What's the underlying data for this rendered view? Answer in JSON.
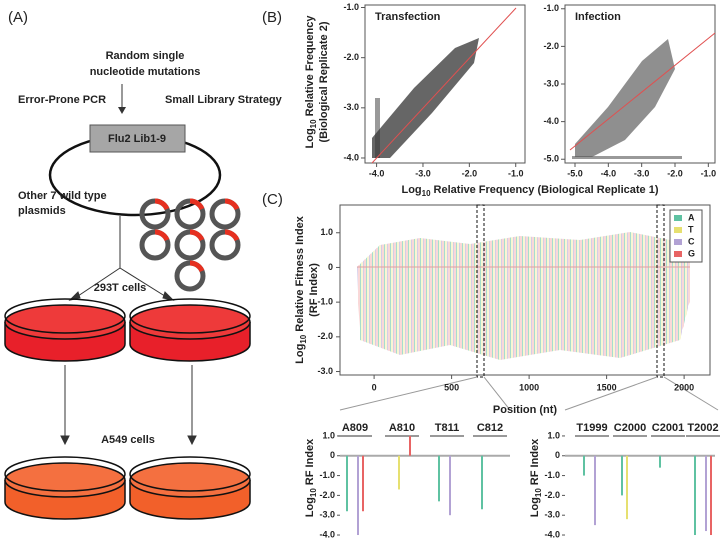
{
  "panel_labels": [
    "(A)",
    "(B)",
    "(C)"
  ],
  "panel_a": {
    "mutations_title": [
      "Random single",
      "nucleotide mutations"
    ],
    "method_left": "Error-Prone PCR",
    "method_right": "Small Library Strategy",
    "library": "Flu2 Lib1-9",
    "other_plasmids": [
      "Other 7 wild type",
      "plasmids"
    ],
    "cells_1": "293T cells",
    "cells_2": "A549 cells"
  },
  "panel_b": {
    "y_label": {
      "log": "Log",
      "base": "10",
      "text": "Relative  Frequency",
      "line2": "(Biological Replicate 2)"
    },
    "x_label": {
      "log": "Log",
      "base": "10",
      "text": "Relative Frequency  (Biological Replicate 1)"
    },
    "plots": [
      {
        "title": "Transfection",
        "xlim": [
          -4.25,
          -0.8
        ],
        "ylim": [
          -4.1,
          -0.95
        ],
        "xticks": [
          {
            "value": -4,
            "label": "-4.0"
          },
          {
            "value": -3,
            "label": "-3.0"
          },
          {
            "value": -2,
            "label": "-2.0"
          },
          {
            "value": -1,
            "label": "-1.0"
          }
        ],
        "yticks": [
          {
            "value": -1,
            "label": "-1.0"
          },
          {
            "value": -2,
            "label": "-2.0"
          },
          {
            "value": -3,
            "label": "-3.0"
          },
          {
            "value": -4,
            "label": "-4.0"
          }
        ]
      },
      {
        "title": "Infection",
        "xlim": [
          -5.3,
          -0.8
        ],
        "ylim": [
          -5.1,
          -0.9
        ],
        "xticks": [
          {
            "value": -5,
            "label": "-5.0"
          },
          {
            "value": -4,
            "label": "-4.0"
          },
          {
            "value": -3,
            "label": "-3.0"
          },
          {
            "value": -2,
            "label": "-2.0"
          },
          {
            "value": -1,
            "label": "-1.0"
          }
        ],
        "yticks": [
          {
            "value": -1,
            "label": "-1.0"
          },
          {
            "value": -2,
            "label": "-2.0"
          },
          {
            "value": -3,
            "label": "-3.0"
          },
          {
            "value": -4,
            "label": "-4.0"
          },
          {
            "value": -5,
            "label": "-5.0"
          }
        ]
      }
    ]
  },
  "panel_c": {
    "y_label": {
      "log": "Log",
      "base": "10",
      "text": "Relative Fitness Index",
      "line2": "(RF Index)"
    },
    "x_label": "Position (nt)",
    "xlim": [
      -110,
      2277
    ],
    "ylim": [
      -3.1,
      1.8
    ],
    "xticks": [
      0,
      500,
      1000,
      1500,
      2000
    ],
    "yticks": [
      {
        "value": 1,
        "label": "1.0"
      },
      0,
      {
        "value": -1,
        "label": "-1.0"
      },
      {
        "value": -2,
        "label": "-2.0"
      },
      {
        "value": -3,
        "label": "-3.0"
      }
    ],
    "legend": [
      {
        "name": "A",
        "color": "#5fc2a2"
      },
      {
        "name": "T",
        "color": "#e6e070"
      },
      {
        "name": "C",
        "color": "#b2a2d4"
      },
      {
        "name": "G",
        "color": "#e86464"
      }
    ],
    "zoom_y_label": {
      "log": "Log",
      "base": "10",
      "text": "RF Index"
    },
    "zoom_ylim": [
      -4.1,
      1.3
    ],
    "zoom_yticks": [
      {
        "value": 1,
        "label": "1.0"
      },
      0,
      {
        "value": -1,
        "label": "-1.0"
      },
      {
        "value": -2,
        "label": "-2.0"
      },
      {
        "value": -3,
        "label": "-3.0"
      },
      {
        "value": -4,
        "label": "-4.0"
      }
    ],
    "zooms": [
      {
        "categories": [
          "A809",
          "A810",
          "T811",
          "C812"
        ],
        "series": [
          {
            "name": "A",
            "values": [
              -2.8,
              null,
              -2.3,
              -2.7
            ]
          },
          {
            "name": "T",
            "values": [
              null,
              -1.7,
              null,
              null
            ]
          },
          {
            "name": "C",
            "values": [
              -4.0,
              null,
              -3.0,
              null
            ]
          },
          {
            "name": "G",
            "values": [
              -2.8,
              1.0,
              null,
              null
            ]
          }
        ]
      },
      {
        "categories": [
          "T1999",
          "C2000",
          "C2001",
          "T2002"
        ],
        "series": [
          {
            "name": "A",
            "values": [
              -1.0,
              -2.0,
              -0.6,
              -4.0
            ]
          },
          {
            "name": "T",
            "values": [
              null,
              -3.2,
              null,
              null
            ]
          },
          {
            "name": "C",
            "values": [
              -3.5,
              null,
              null,
              -3.8
            ]
          },
          {
            "name": "G",
            "values": [
              null,
              null,
              null,
              -4.0
            ]
          }
        ]
      }
    ]
  }
}
